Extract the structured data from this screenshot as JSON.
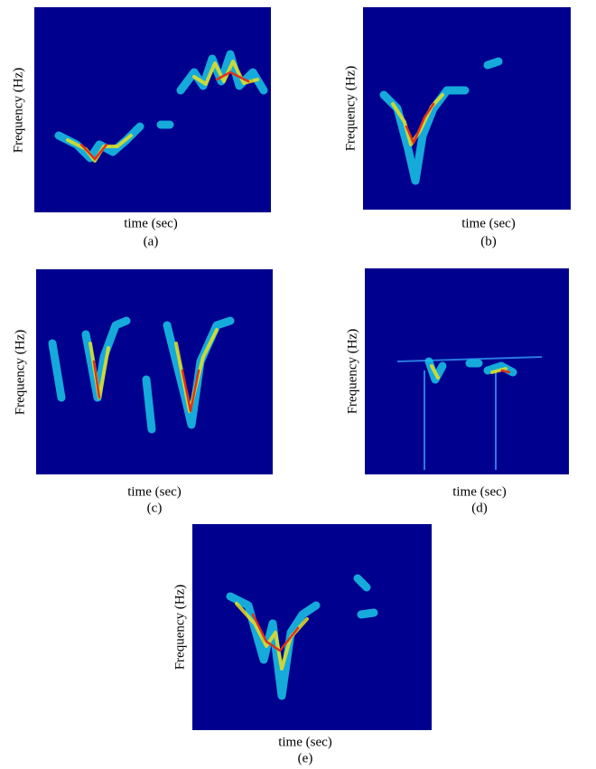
{
  "panels": [
    {
      "y_label": "Frequency (Hz)",
      "x_label": "time (sec)",
      "caption": "(a)"
    },
    {
      "y_label": "Frequency (Hz)",
      "x_label": "time (sec)",
      "caption": "(b)"
    },
    {
      "y_label": "Frequency (Hz)",
      "x_label": "time (sec)",
      "caption": "(c)"
    },
    {
      "y_label": "Frequency (Hz)",
      "x_label": "time (sec)",
      "caption": "(d)"
    },
    {
      "y_label": "Frequency (Hz)",
      "x_label": "time (sec)",
      "caption": "(e)"
    }
  ]
}
